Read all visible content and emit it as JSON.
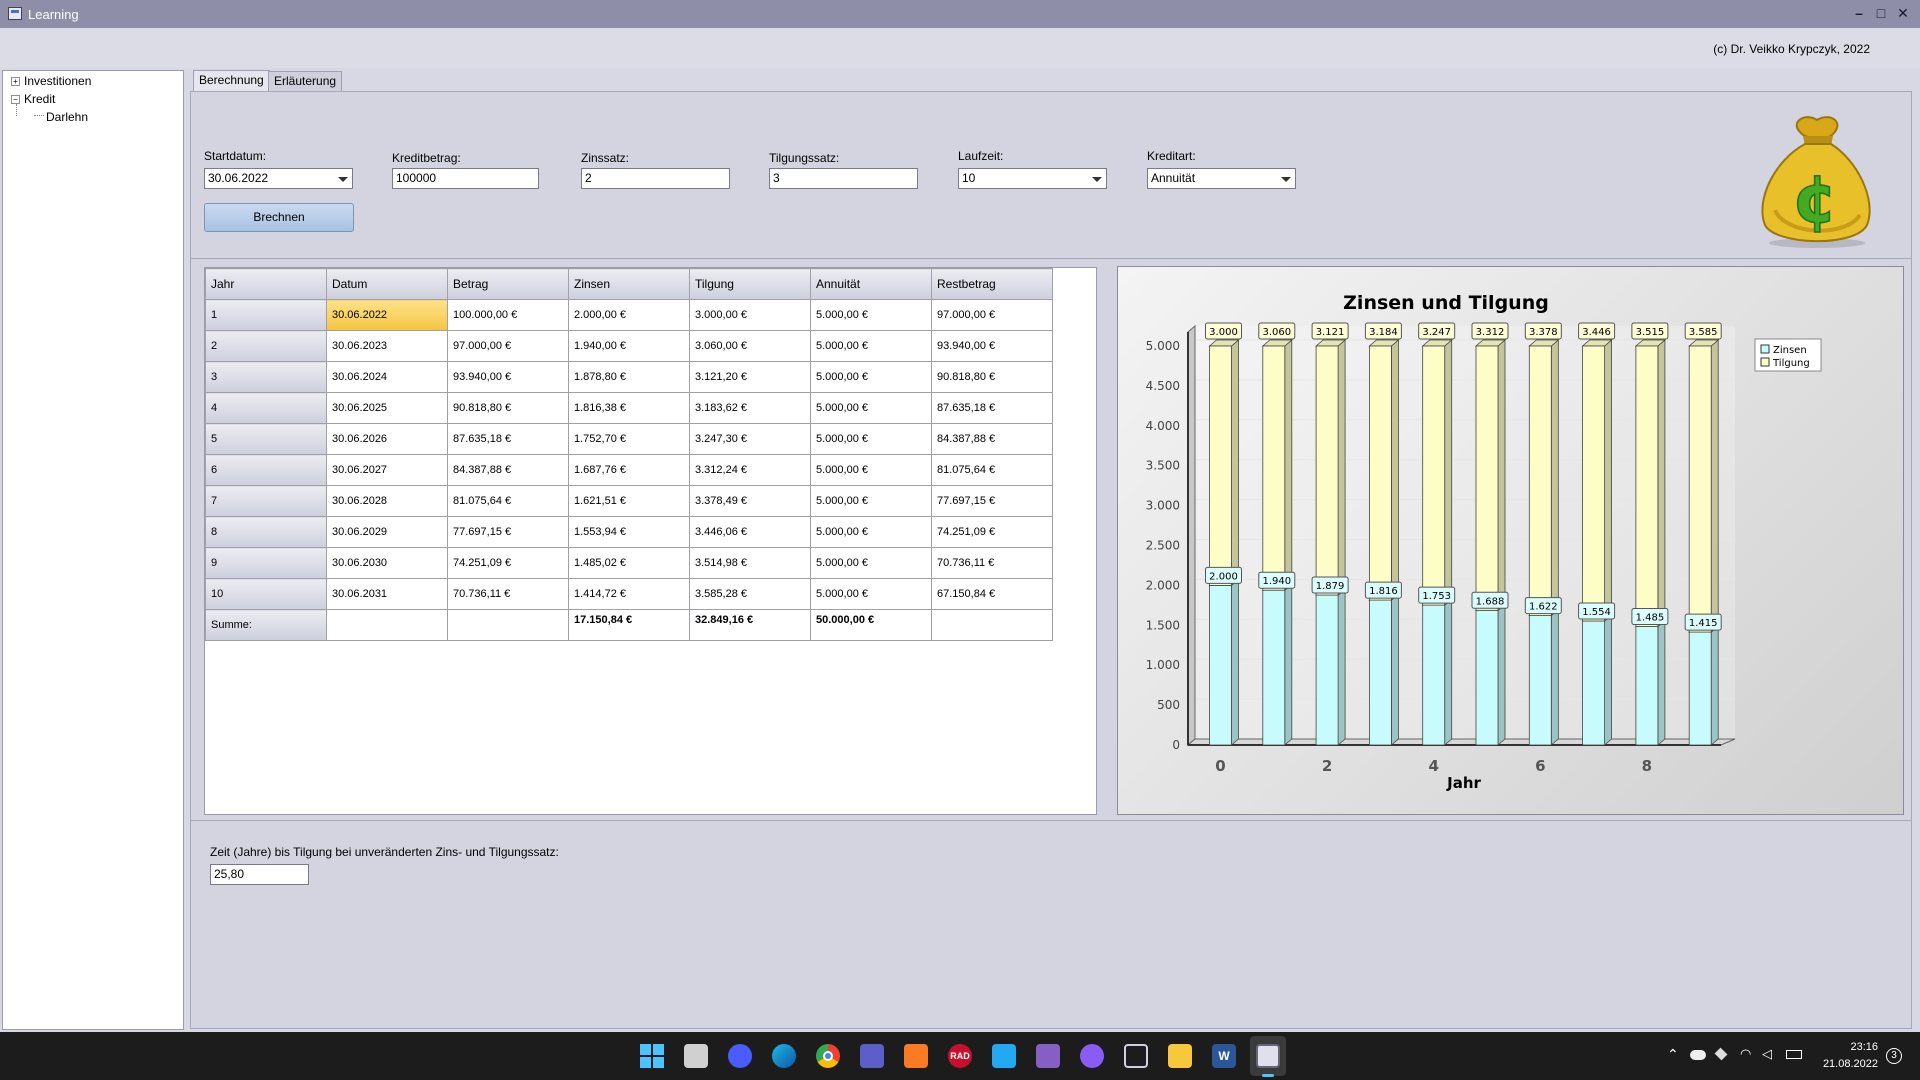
{
  "window": {
    "title": "Learning",
    "controls": [
      "–",
      "□",
      "✕"
    ]
  },
  "header": {
    "copyright": "(c) Dr. Veikko Krypczyk, 2022"
  },
  "tree": [
    {
      "label": "Investitionen",
      "expander": "+"
    },
    {
      "label": "Kredit",
      "expander": "−"
    },
    {
      "label": "Darlehn",
      "expander": ""
    }
  ],
  "tabs": [
    {
      "label": "Berechnung",
      "active": true
    },
    {
      "label": "Erläuterung",
      "active": false
    }
  ],
  "form": {
    "startdatum": {
      "label": "Startdatum:",
      "value": "30.06.2022"
    },
    "kreditbetrag": {
      "label": "Kreditbetrag:",
      "value": "100000"
    },
    "zinssatz": {
      "label": "Zinssatz:",
      "value": "2"
    },
    "tilgungssatz": {
      "label": "Tilgungssatz:",
      "value": "3"
    },
    "laufzeit": {
      "label": "Laufzeit:",
      "value": "10"
    },
    "kreditart": {
      "label": "Kreditart:",
      "value": "Annuität"
    },
    "button": "Brechnen"
  },
  "table": {
    "headers": [
      "Jahr",
      "Datum",
      "Betrag",
      "Zinsen",
      "Tilgung",
      "Annuität",
      "Restbetrag"
    ],
    "rows": [
      [
        "1",
        "30.06.2022",
        "100.000,00 €",
        "2.000,00 €",
        "3.000,00 €",
        "5.000,00 €",
        "97.000,00 €"
      ],
      [
        "2",
        "30.06.2023",
        "97.000,00 €",
        "1.940,00 €",
        "3.060,00 €",
        "5.000,00 €",
        "93.940,00 €"
      ],
      [
        "3",
        "30.06.2024",
        "93.940,00 €",
        "1.878,80 €",
        "3.121,20 €",
        "5.000,00 €",
        "90.818,80 €"
      ],
      [
        "4",
        "30.06.2025",
        "90.818,80 €",
        "1.816,38 €",
        "3.183,62 €",
        "5.000,00 €",
        "87.635,18 €"
      ],
      [
        "5",
        "30.06.2026",
        "87.635,18 €",
        "1.752,70 €",
        "3.247,30 €",
        "5.000,00 €",
        "84.387,88 €"
      ],
      [
        "6",
        "30.06.2027",
        "84.387,88 €",
        "1.687,76 €",
        "3.312,24 €",
        "5.000,00 €",
        "81.075,64 €"
      ],
      [
        "7",
        "30.06.2028",
        "81.075,64 €",
        "1.621,51 €",
        "3.378,49 €",
        "5.000,00 €",
        "77.697,15 €"
      ],
      [
        "8",
        "30.06.2029",
        "77.697,15 €",
        "1.553,94 €",
        "3.446,06 €",
        "5.000,00 €",
        "74.251,09 €"
      ],
      [
        "9",
        "30.06.2030",
        "74.251,09 €",
        "1.485,02 €",
        "3.514,98 €",
        "5.000,00 €",
        "70.736,11 €"
      ],
      [
        "10",
        "30.06.2031",
        "70.736,11 €",
        "1.414,72 €",
        "3.585,28 €",
        "5.000,00 €",
        "67.150,84 €"
      ]
    ],
    "sum_row": [
      "Summe:",
      "",
      "",
      "17.150,84 €",
      "32.849,16 €",
      "50.000,00 €",
      ""
    ]
  },
  "result": {
    "label": "Zeit (Jahre) bis Tilgung bei unveränderten Zins- und Tilgungssatz:",
    "value": "25,80"
  },
  "chart_data": {
    "type": "bar",
    "stacked": true,
    "title": "Zinsen und Tilgung",
    "xlabel": "Jahr",
    "ylabel": "",
    "x": [
      0,
      1,
      2,
      3,
      4,
      5,
      6,
      7,
      8,
      9
    ],
    "x_tick_labels": [
      "0",
      "2",
      "4",
      "6",
      "8"
    ],
    "x_tick_values": [
      0,
      2,
      4,
      6,
      8
    ],
    "ylim": [
      0,
      5000
    ],
    "y_ticks": [
      0,
      500,
      1000,
      1500,
      2000,
      2500,
      3000,
      3500,
      4000,
      4500,
      5000
    ],
    "y_tick_labels": [
      "0",
      "500",
      "1.000",
      "1.500",
      "2.000",
      "2.500",
      "3.000",
      "3.500",
      "4.000",
      "4.500",
      "5.000"
    ],
    "series": [
      {
        "name": "Zinsen",
        "values": [
          2000,
          1940,
          1879,
          1816,
          1753,
          1688,
          1622,
          1554,
          1485,
          1415
        ],
        "labels": [
          "2.000",
          "1.940",
          "1.879",
          "1.816",
          "1.753",
          "1.688",
          "1.622",
          "1.554",
          "1.485",
          "1.415"
        ],
        "color": "#c8fbfb",
        "label_bg": "#dcfdfd"
      },
      {
        "name": "Tilgung",
        "values": [
          3000,
          3060,
          3121,
          3184,
          3247,
          3312,
          3378,
          3446,
          3515,
          3585
        ],
        "labels": [
          "3.000",
          "3.060",
          "3.121",
          "3.184",
          "3.247",
          "3.312",
          "3.378",
          "3.446",
          "3.515",
          "3.585"
        ],
        "color": "#fdfdc8",
        "label_bg": "#fdfdd8"
      }
    ],
    "legend_position": "top-right",
    "view": "3d"
  },
  "taskbar": {
    "icons": [
      "windows-start-icon",
      "task-view-icon",
      "zoom-icon",
      "edge-icon",
      "chrome-icon",
      "teams-icon",
      "xampp-icon",
      "rad-studio-icon",
      "vscode-icon",
      "visual-studio-icon",
      "github-icon",
      "box-icon",
      "file-explorer-icon",
      "word-icon",
      "learning-app-icon"
    ],
    "rad_text": "RAD",
    "word_text": "W",
    "time": "23:16",
    "date": "21.08.2022",
    "notification_count": "3"
  }
}
